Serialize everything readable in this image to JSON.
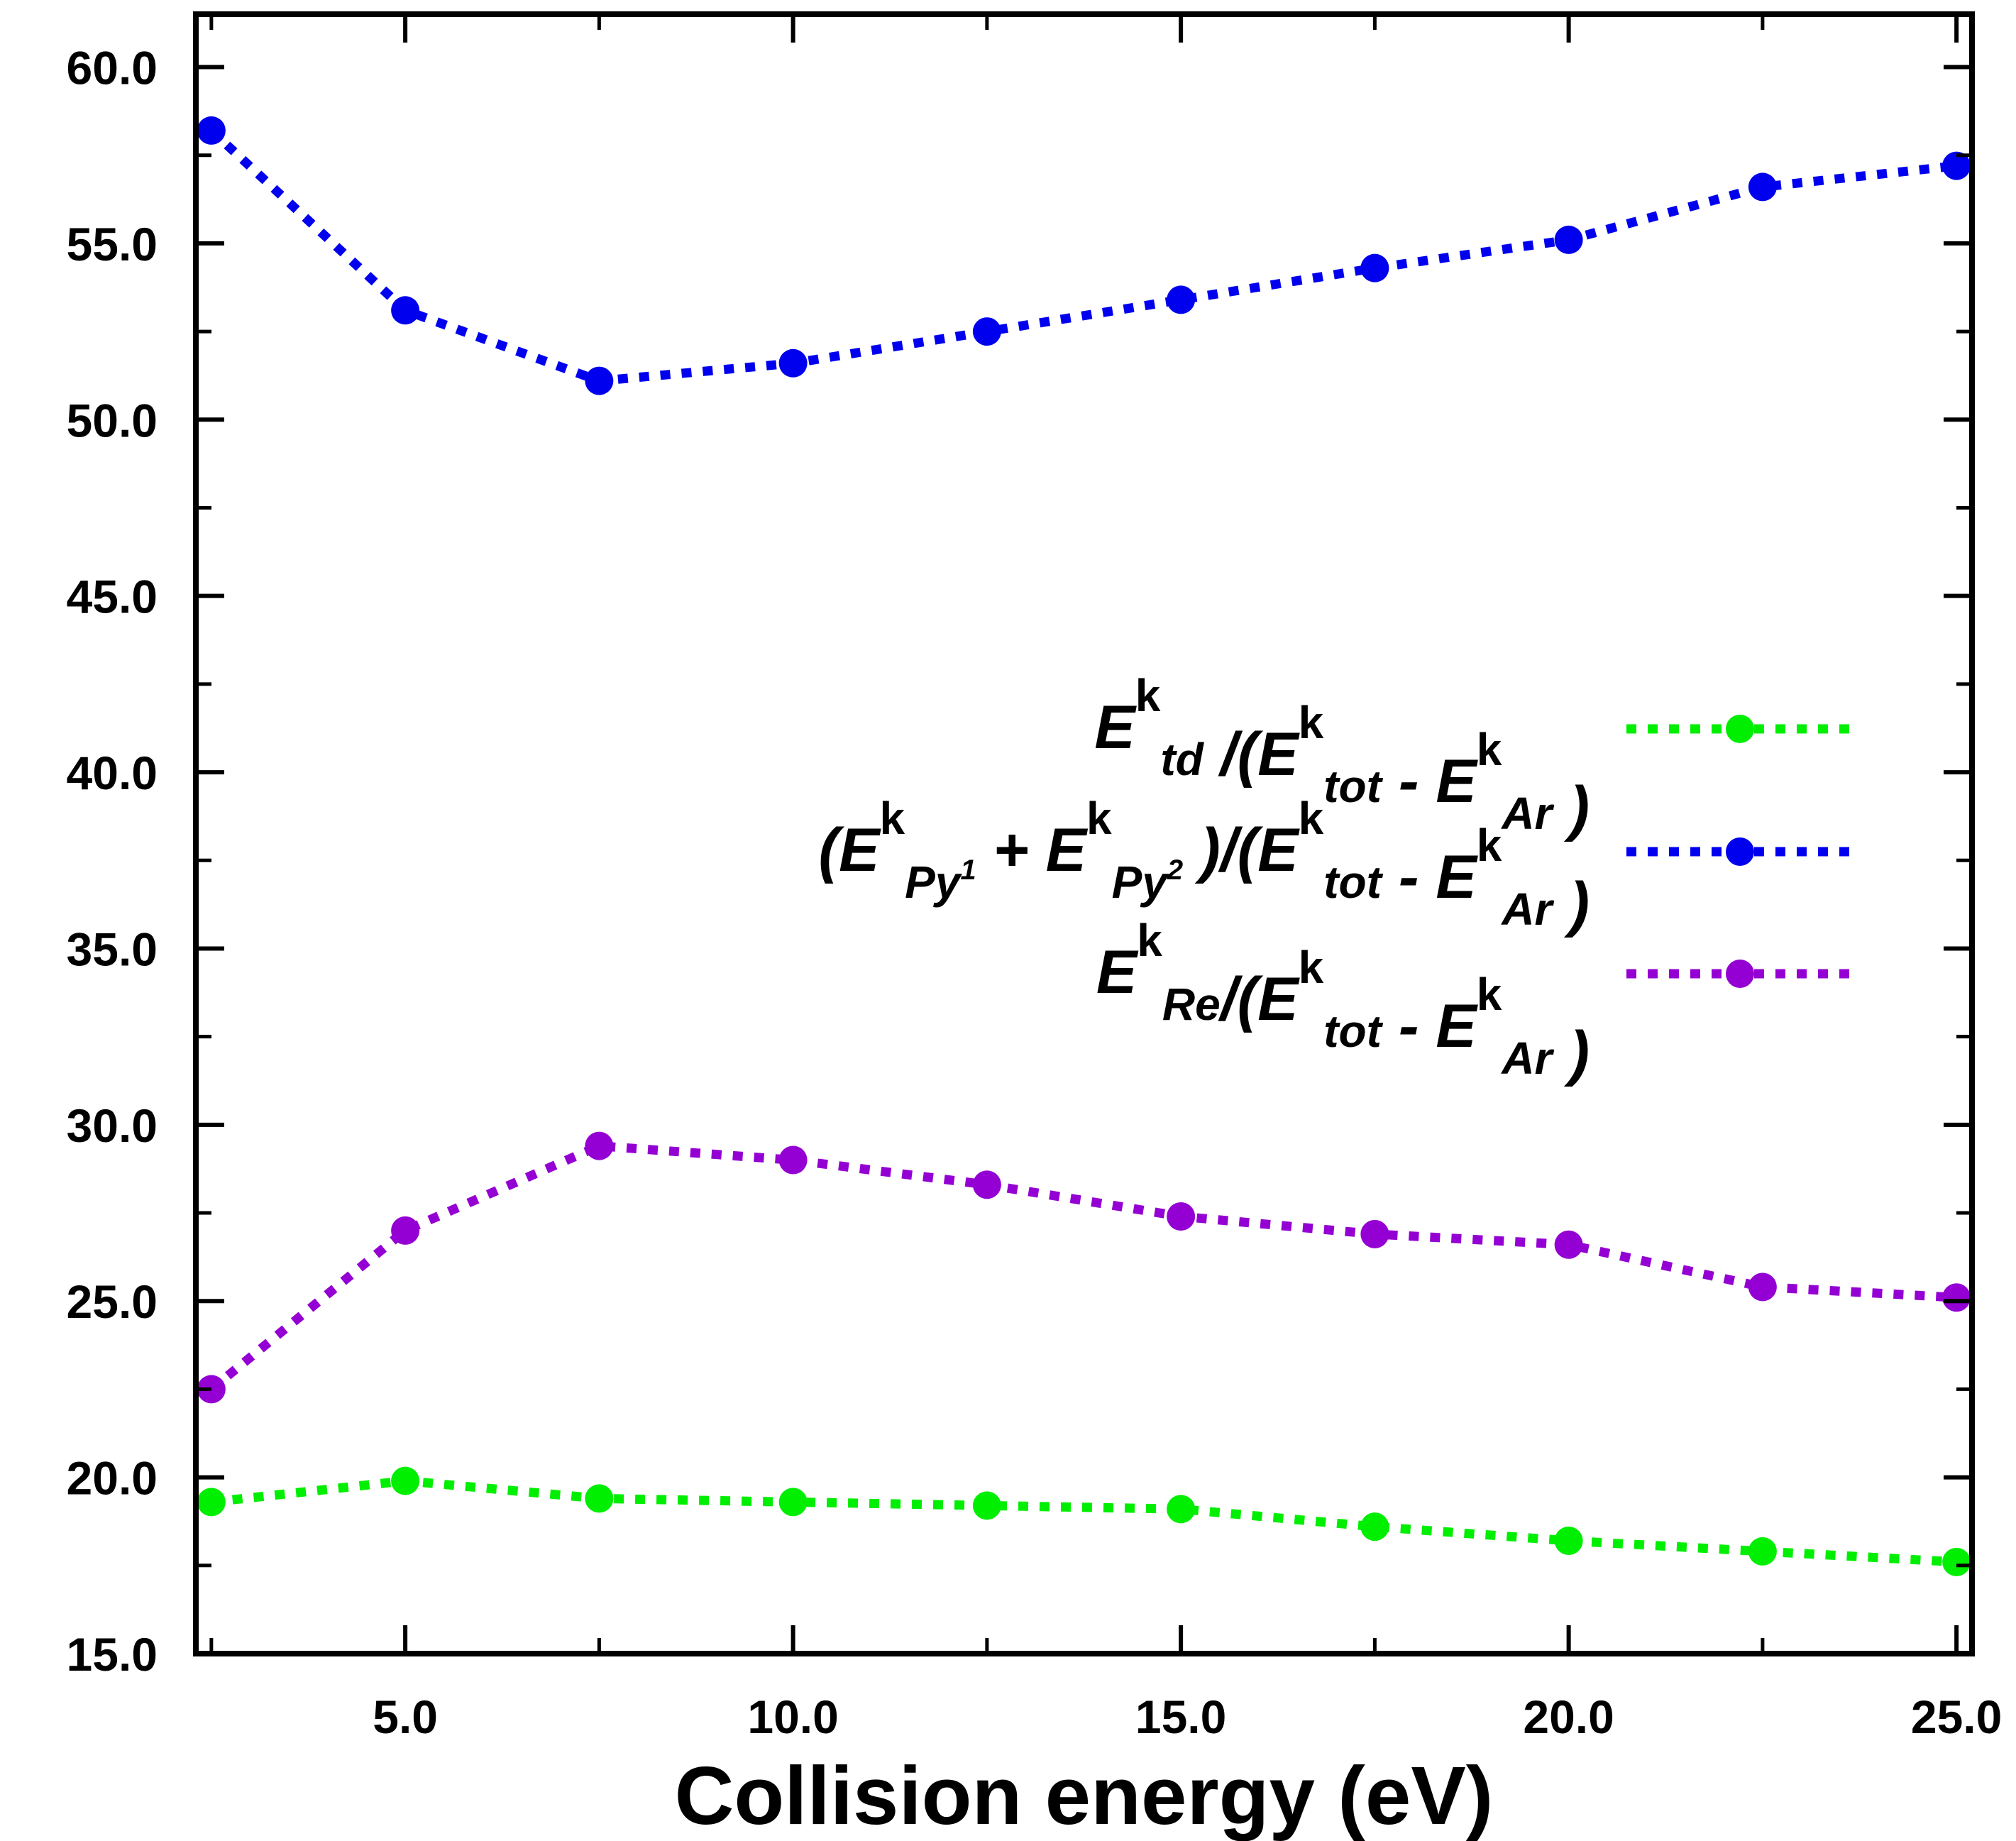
{
  "chart_data": {
    "type": "line",
    "xlabel": "Collision energy (eV)",
    "ylabel": "",
    "xlim": [
      2.3,
      25.2
    ],
    "ylim": [
      15.0,
      61.5
    ],
    "x_ticks": [
      "5.0",
      "10.0",
      "15.0",
      "20.0",
      "25.0"
    ],
    "y_ticks": [
      "15.0",
      "20.0",
      "25.0",
      "30.0",
      "35.0",
      "40.0",
      "45.0",
      "50.0",
      "55.0",
      "60.0"
    ],
    "legend_position": "right",
    "grid": false,
    "x": [
      2.5,
      5.0,
      7.5,
      10.0,
      12.5,
      15.0,
      17.5,
      20.0,
      22.5,
      25.0
    ],
    "series": [
      {
        "key": "td",
        "color": "#00ee00",
        "values": [
          19.3,
          19.9,
          19.4,
          19.3,
          19.2,
          19.1,
          18.6,
          18.2,
          17.9,
          17.6
        ],
        "legend": {
          "prefix": "",
          "E1": "E",
          "k1": "k",
          "s1": "td",
          "mid": " /(",
          "E2": "E",
          "k2": "k",
          "s2": "tot",
          "minus": " - ",
          "E3": "E",
          "k3": "k",
          "s3": "Ar",
          "end": " )"
        }
      },
      {
        "key": "py",
        "color": "#0000ee",
        "values": [
          58.2,
          53.1,
          51.1,
          51.6,
          52.5,
          53.4,
          54.3,
          55.1,
          56.6,
          57.2
        ],
        "legend": {
          "prefix": "(",
          "E1": "E",
          "k1": "k",
          "s1": "Py",
          "ss1": "1",
          "plus": "+ ",
          "E1b": "E",
          "k1b": "k",
          "s1b": "Py",
          "ss1b": "2",
          "mid": ")/(",
          "E2": "E",
          "k2": "k",
          "s2": "tot",
          "minus": " - ",
          "E3": "E",
          "k3": "k",
          "s3": "Ar",
          "end": "  )"
        }
      },
      {
        "key": "re",
        "color": "#9400d3",
        "values": [
          22.5,
          27.0,
          29.4,
          29.0,
          28.3,
          27.4,
          26.9,
          26.6,
          25.4,
          25.1
        ],
        "legend": {
          "prefix": "",
          "E1": "E",
          "k1": "k",
          "s1": "Re",
          "mid": "/(",
          "E2": "E",
          "k2": "k",
          "s2": "tot",
          "minus": " - ",
          "E3": "E",
          "k3": "k",
          "s3": "Ar",
          "end": " )"
        }
      }
    ]
  }
}
